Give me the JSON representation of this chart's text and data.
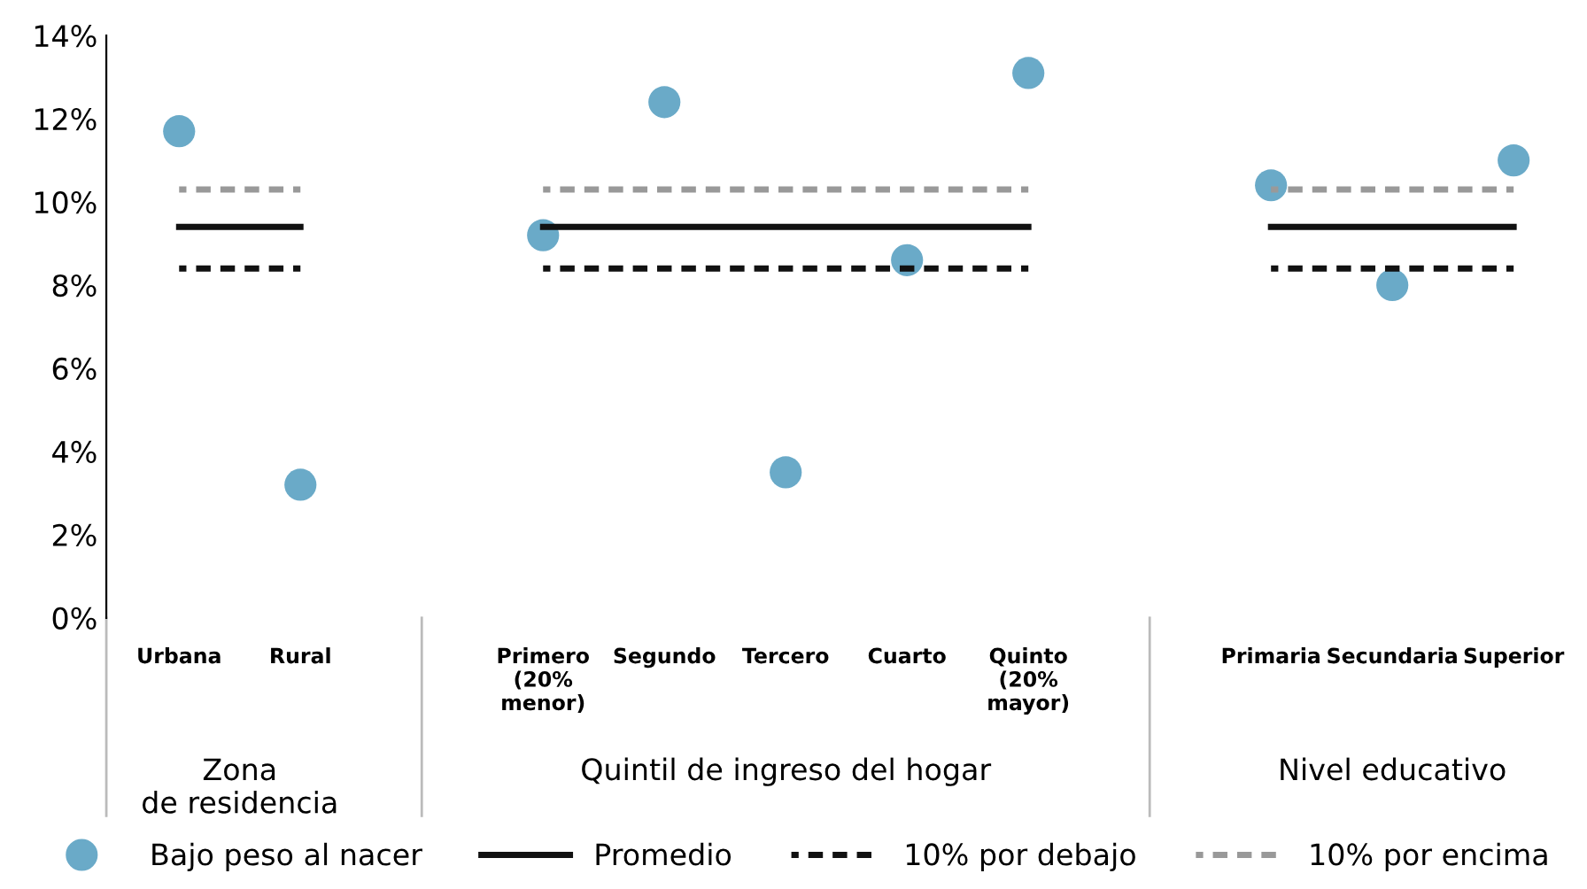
{
  "chart_data": {
    "type": "scatter",
    "categories": [
      "Urbana",
      "Rural",
      null,
      "Primero\n(20%\nmenor)",
      "Segundo",
      "Tercero",
      "Cuarto",
      "Quinto\n(20%\nmayor)",
      null,
      "Primaria",
      "Secundaria",
      "Superior"
    ],
    "series": [
      {
        "name": "Bajo peso al nacer",
        "color": "#6aaac8",
        "marker": "circle",
        "values": [
          11.7,
          3.2,
          null,
          9.2,
          12.4,
          3.5,
          8.6,
          13.1,
          null,
          10.4,
          8.0,
          11.0
        ]
      },
      {
        "name": "Promedio",
        "type": "line",
        "color": "#111111",
        "line_style": "solid",
        "values": [
          9.4,
          9.4,
          null,
          9.4,
          9.4,
          9.4,
          9.4,
          9.4,
          null,
          9.4,
          9.4,
          9.4
        ]
      },
      {
        "name": "10% por debajo",
        "type": "line",
        "color": "#111111",
        "line_style": "dashed",
        "values": [
          8.4,
          8.4,
          null,
          8.4,
          8.4,
          8.4,
          8.4,
          8.4,
          null,
          8.4,
          8.4,
          8.4
        ]
      },
      {
        "name": "10% por encima",
        "type": "line",
        "color": "#999999",
        "line_style": "dashed",
        "values": [
          10.3,
          10.3,
          null,
          10.3,
          10.3,
          10.3,
          10.3,
          10.3,
          null,
          10.3,
          10.3,
          10.3
        ]
      }
    ],
    "ylim": [
      0,
      14
    ],
    "yticks": [
      {
        "value": 0,
        "label": "0%"
      },
      {
        "value": 2,
        "label": "2%"
      },
      {
        "value": 4,
        "label": "4%"
      },
      {
        "value": 6,
        "label": "6%"
      },
      {
        "value": 8,
        "label": "8%"
      },
      {
        "value": 10,
        "label": "10%"
      },
      {
        "value": 12,
        "label": "12%"
      },
      {
        "value": 14,
        "label": "14%"
      }
    ],
    "annotations": [
      "Zona\nde residencia",
      "Quintil de ingreso del hogar",
      "Nivel educativo"
    ],
    "grid": false,
    "legend": "bottom"
  }
}
